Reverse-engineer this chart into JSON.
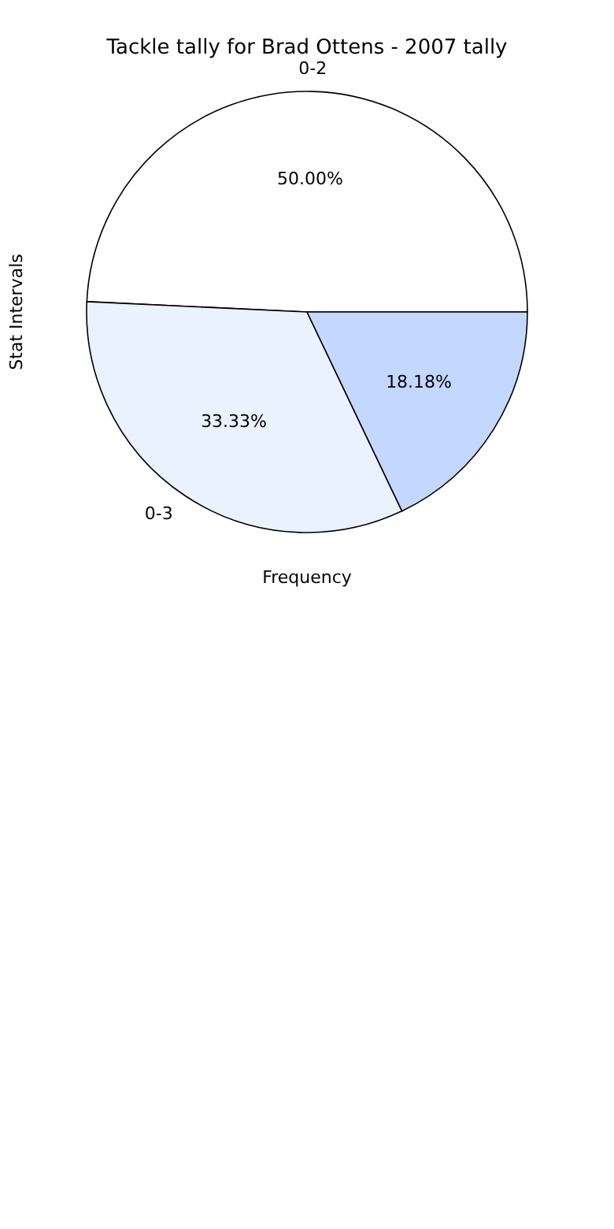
{
  "chart_data": {
    "type": "pie",
    "title": "Tackle tally for Brad Ottens - 2007 tally",
    "xlabel": "Frequency",
    "ylabel": "Stat Intervals",
    "categories": [
      "0-2",
      "0-3",
      null
    ],
    "values": [
      50,
      33.33,
      18.18
    ],
    "colors": [
      "#ffffff",
      "#eaf1ff",
      "#c4d8ff"
    ],
    "value_labels": [
      "50.00%",
      "33.33%",
      "18.18%"
    ]
  }
}
